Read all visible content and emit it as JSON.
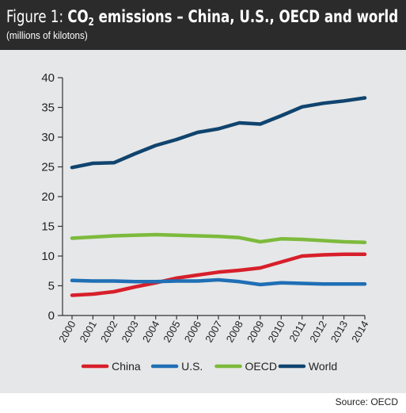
{
  "header": {
    "title_prefix": "Figure 1: ",
    "title_co": "CO",
    "title_sub": "2",
    "title_rest": " emissions – China, U.S., OECD and world",
    "subtitle": "(millions of kilotons)"
  },
  "footer": {
    "source": "Source: OECD"
  },
  "colors": {
    "header_bg": "#2b2b2b",
    "panel_bg": "#e6e7e8",
    "china": "#d71f2b",
    "us": "#1f6fb5",
    "oecd": "#7dba3c",
    "world": "#10446f"
  },
  "chart_data": {
    "type": "line",
    "title": "Figure 1: CO2 emissions – China, U.S., OECD and world",
    "subtitle": "(millions of kilotons)",
    "xlabel": "",
    "ylabel": "",
    "x": [
      "2000",
      "2001",
      "2002",
      "2003",
      "2004",
      "2005",
      "2006",
      "2007",
      "2008",
      "2009",
      "2010",
      "2011",
      "2012",
      "2013",
      "2014"
    ],
    "ylim": [
      0,
      40
    ],
    "yticks": [
      "0",
      "5",
      "10",
      "15",
      "20",
      "25",
      "30",
      "35",
      "40"
    ],
    "grid": "none",
    "legend_position": "bottom",
    "series": [
      {
        "name": "China",
        "color": "#d71f2b",
        "values": [
          3.4,
          3.6,
          4.0,
          4.8,
          5.5,
          6.3,
          6.8,
          7.3,
          7.6,
          8.0,
          9.0,
          10.0,
          10.2,
          10.3,
          10.3
        ]
      },
      {
        "name": "U.S.",
        "color": "#1f6fb5",
        "values": [
          5.9,
          5.8,
          5.8,
          5.7,
          5.7,
          5.8,
          5.8,
          6.0,
          5.7,
          5.2,
          5.5,
          5.4,
          5.3,
          5.3,
          5.3
        ]
      },
      {
        "name": "OECD",
        "color": "#7dba3c",
        "values": [
          13.0,
          13.2,
          13.4,
          13.5,
          13.6,
          13.5,
          13.4,
          13.3,
          13.1,
          12.4,
          12.9,
          12.8,
          12.6,
          12.4,
          12.3
        ]
      },
      {
        "name": "World",
        "color": "#10446f",
        "values": [
          24.9,
          25.6,
          25.7,
          27.2,
          28.6,
          29.6,
          30.8,
          31.4,
          32.4,
          32.2,
          33.6,
          35.1,
          35.7,
          36.1,
          36.6
        ]
      }
    ]
  }
}
